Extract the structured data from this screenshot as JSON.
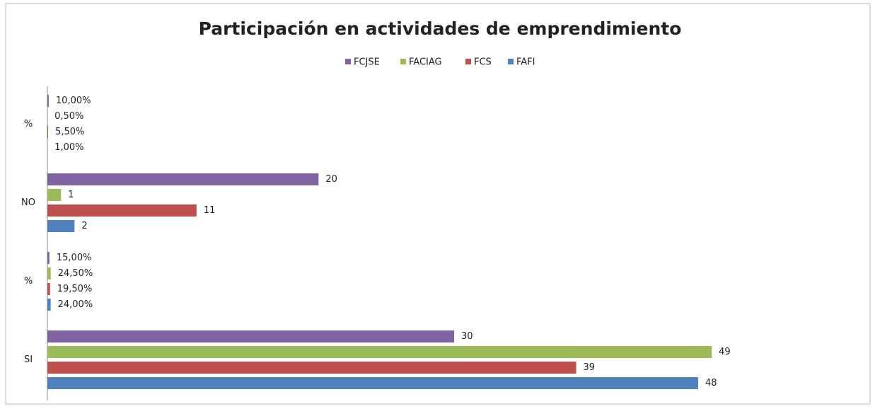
{
  "chart_data": {
    "type": "hbar",
    "title": "Participación en actividades de emprendimiento",
    "categories": [
      "%",
      "NO",
      "%",
      "SI"
    ],
    "series": [
      {
        "name": "FCJSE",
        "color": "#8064a2",
        "values": [
          0.1,
          20,
          0.15,
          30
        ],
        "value_labels": [
          "10,00%",
          "20",
          "15,00%",
          "30"
        ]
      },
      {
        "name": "FACIAG",
        "color": "#9bbb59",
        "values": [
          0.005,
          1,
          0.245,
          49
        ],
        "value_labels": [
          "0,50%",
          "1",
          "24,50%",
          "49"
        ]
      },
      {
        "name": "FCS",
        "color": "#c0504d",
        "values": [
          0.055,
          11,
          0.195,
          39
        ],
        "value_labels": [
          "5,50%",
          "11",
          "19,50%",
          "39"
        ]
      },
      {
        "name": "FAFI",
        "color": "#4f81bd",
        "values": [
          0.01,
          2,
          0.24,
          48
        ],
        "value_labels": [
          "1,00%",
          "2",
          "24,00%",
          "48"
        ]
      }
    ],
    "xlim": [
      0,
      60
    ],
    "legend": "top"
  }
}
